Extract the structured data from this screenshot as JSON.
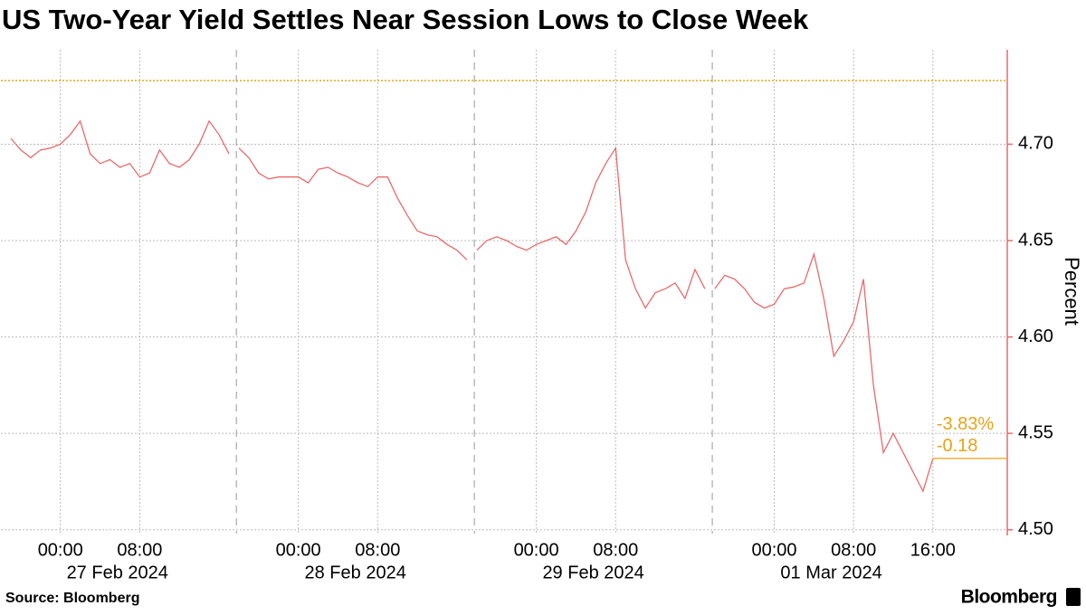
{
  "chart_data": {
    "type": "line",
    "title": "US Two-Year Yield Settles Near Session Lows to Close Week",
    "y_axis_label": "Percent",
    "source": "Source: Bloomberg",
    "brand": "Bloomberg",
    "annotations": [
      "-3.83%",
      "-0.18"
    ],
    "annotation_color": "#e8a317",
    "reference_line": 4.733,
    "xlim": [
      "2024-02-26 18:00",
      "2024-03-01 23:30"
    ],
    "xticks": [
      {
        "value": "2024-02-27 00:00",
        "label": "00:00"
      },
      {
        "value": "2024-02-27 08:00",
        "label": "08:00"
      },
      {
        "value": "2024-02-28 00:00",
        "label": "00:00"
      },
      {
        "value": "2024-02-28 08:00",
        "label": "08:00"
      },
      {
        "value": "2024-02-29 00:00",
        "label": "00:00"
      },
      {
        "value": "2024-02-29 08:00",
        "label": "08:00"
      },
      {
        "value": "2024-03-01 00:00",
        "label": "00:00"
      },
      {
        "value": "2024-03-01 08:00",
        "label": "08:00"
      },
      {
        "value": "2024-03-01 16:00",
        "label": "16:00"
      }
    ],
    "x_date_labels": [
      {
        "value": "2024-02-27 00:00",
        "label": "27 Feb 2024"
      },
      {
        "value": "2024-02-28 00:00",
        "label": "28 Feb 2024"
      },
      {
        "value": "2024-02-29 00:00",
        "label": "29 Feb 2024"
      },
      {
        "value": "2024-03-01 00:00",
        "label": "01 Mar 2024"
      }
    ],
    "ylim": [
      4.498,
      4.749
    ],
    "yticks": [
      {
        "value": 4.5,
        "label": "4.50"
      },
      4.55,
      {
        "value": 4.6,
        "label": "4.60"
      },
      4.65,
      {
        "value": 4.7,
        "label": "4.70"
      }
    ],
    "grid": true,
    "x": [
      "2024-02-26 19:00",
      "2024-02-26 20:00",
      "2024-02-26 21:00",
      "2024-02-26 22:00",
      "2024-02-26 23:00",
      "2024-02-27 00:00",
      "2024-02-27 01:00",
      "2024-02-27 02:00",
      "2024-02-27 03:00",
      "2024-02-27 04:00",
      "2024-02-27 05:00",
      "2024-02-27 06:00",
      "2024-02-27 07:00",
      "2024-02-27 08:00",
      "2024-02-27 09:00",
      "2024-02-27 10:00",
      "2024-02-27 11:00",
      "2024-02-27 12:00",
      "2024-02-27 13:00",
      "2024-02-27 14:00",
      "2024-02-27 15:00",
      "2024-02-27 16:00",
      "2024-02-27 17:00",
      "2024-02-27 17:45",
      "2024-02-27 18:00",
      "2024-02-27 19:00",
      "2024-02-27 20:00",
      "2024-02-27 21:00",
      "2024-02-27 22:00",
      "2024-02-27 23:00",
      "2024-02-28 00:00",
      "2024-02-28 01:00",
      "2024-02-28 02:00",
      "2024-02-28 03:00",
      "2024-02-28 04:00",
      "2024-02-28 05:00",
      "2024-02-28 06:00",
      "2024-02-28 07:00",
      "2024-02-28 08:00",
      "2024-02-28 09:00",
      "2024-02-28 10:00",
      "2024-02-28 11:00",
      "2024-02-28 12:00",
      "2024-02-28 13:00",
      "2024-02-28 14:00",
      "2024-02-28 15:00",
      "2024-02-28 16:00",
      "2024-02-28 17:00",
      "2024-02-28 17:45",
      "2024-02-28 18:00",
      "2024-02-28 19:00",
      "2024-02-28 20:00",
      "2024-02-28 21:00",
      "2024-02-28 22:00",
      "2024-02-28 23:00",
      "2024-02-29 00:00",
      "2024-02-29 01:00",
      "2024-02-29 02:00",
      "2024-02-29 03:00",
      "2024-02-29 04:00",
      "2024-02-29 05:00",
      "2024-02-29 06:00",
      "2024-02-29 07:00",
      "2024-02-29 08:00",
      "2024-02-29 09:00",
      "2024-02-29 10:00",
      "2024-02-29 11:00",
      "2024-02-29 12:00",
      "2024-02-29 13:00",
      "2024-02-29 14:00",
      "2024-02-29 15:00",
      "2024-02-29 16:00",
      "2024-02-29 17:00",
      "2024-02-29 17:45",
      "2024-02-29 18:00",
      "2024-02-29 19:00",
      "2024-02-29 20:00",
      "2024-02-29 21:00",
      "2024-02-29 22:00",
      "2024-02-29 23:00",
      "2024-03-01 00:00",
      "2024-03-01 01:00",
      "2024-03-01 02:00",
      "2024-03-01 03:00",
      "2024-03-01 04:00",
      "2024-03-01 05:00",
      "2024-03-01 06:00",
      "2024-03-01 07:00",
      "2024-03-01 08:00",
      "2024-03-01 09:00",
      "2024-03-01 10:00",
      "2024-03-01 11:00",
      "2024-03-01 12:00",
      "2024-03-01 13:00",
      "2024-03-01 14:00",
      "2024-03-01 15:00",
      "2024-03-01 16:00"
    ],
    "series": [
      {
        "name": "US two-year yield",
        "color": "#e86a6c",
        "values": [
          4.703,
          4.697,
          4.693,
          4.697,
          4.698,
          4.7,
          4.705,
          4.712,
          4.695,
          4.69,
          4.692,
          4.688,
          4.69,
          4.683,
          4.685,
          4.697,
          4.69,
          4.688,
          4.692,
          4.7,
          4.712,
          4.705,
          4.695,
          null,
          4.698,
          4.693,
          4.685,
          4.682,
          4.683,
          4.683,
          4.683,
          4.68,
          4.687,
          4.688,
          4.685,
          4.683,
          4.68,
          4.678,
          4.683,
          4.683,
          4.672,
          4.663,
          4.655,
          4.653,
          4.652,
          4.648,
          4.645,
          4.64,
          null,
          4.645,
          4.65,
          4.652,
          4.65,
          4.647,
          4.645,
          4.648,
          4.65,
          4.652,
          4.648,
          4.655,
          4.665,
          4.68,
          4.69,
          4.698,
          4.64,
          4.625,
          4.615,
          4.623,
          4.625,
          4.628,
          4.62,
          4.635,
          4.625,
          null,
          4.625,
          4.632,
          4.63,
          4.625,
          4.618,
          4.615,
          4.617,
          4.625,
          4.626,
          4.628,
          4.643,
          4.62,
          4.59,
          4.598,
          4.608,
          4.63,
          4.575,
          4.54,
          4.55,
          4.54,
          4.53,
          4.52,
          4.537
        ]
      }
    ]
  }
}
